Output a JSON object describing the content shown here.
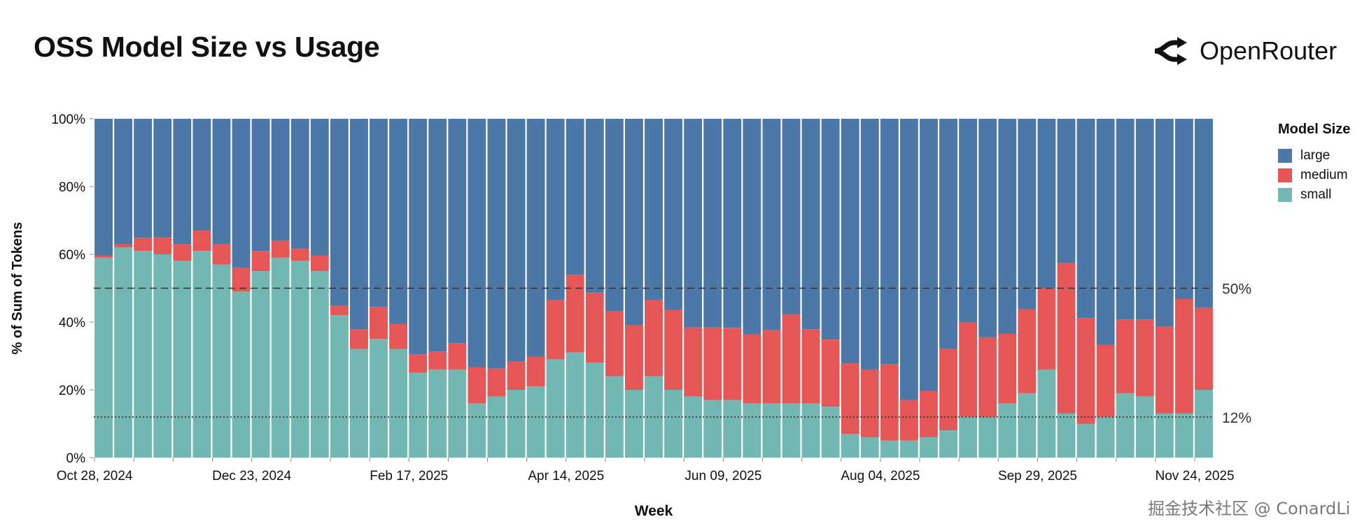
{
  "page": {
    "title": "OSS Model Size vs Usage",
    "brand": {
      "name": "OpenRouter",
      "icon": "openrouter-logo-icon"
    },
    "watermark": "掘金技术社区 @ ConardLi"
  },
  "chart_data": {
    "type": "bar",
    "stacked": true,
    "normalized": true,
    "xlabel": "Week",
    "ylabel": "% of Sum of Tokens",
    "ylim": [
      0,
      100
    ],
    "y_ticks": [
      "0%",
      "20%",
      "40%",
      "60%",
      "80%",
      "100%"
    ],
    "x_tick_labels": [
      {
        "index": 0,
        "label": "Oct 28, 2024"
      },
      {
        "index": 8,
        "label": "Dec 23, 2024"
      },
      {
        "index": 16,
        "label": "Feb 17, 2025"
      },
      {
        "index": 24,
        "label": "Apr 14, 2025"
      },
      {
        "index": 32,
        "label": "Jun 09, 2025"
      },
      {
        "index": 40,
        "label": "Aug 04, 2025"
      },
      {
        "index": 48,
        "label": "Sep 29, 2025"
      },
      {
        "index": 56,
        "label": "Nov 24, 2025"
      }
    ],
    "legend": {
      "title": "Model Size",
      "position": "right"
    },
    "series": [
      {
        "name": "small",
        "color": "#72b7b2",
        "values": [
          59,
          62,
          61,
          60,
          58,
          61,
          57,
          49,
          55,
          59,
          58,
          55,
          42,
          32,
          35,
          32,
          25,
          26,
          26,
          16,
          18,
          20,
          21,
          29,
          31,
          28,
          24,
          20,
          24,
          20,
          18,
          17,
          17,
          16,
          16,
          16,
          16,
          15,
          7,
          6,
          5,
          5,
          6,
          8,
          12,
          12,
          16,
          19,
          26,
          13,
          10,
          12,
          19,
          18,
          13,
          13,
          20
        ]
      },
      {
        "name": "medium",
        "color": "#e45756",
        "values": [
          0.6,
          0.9,
          3.8,
          4.9,
          5,
          6,
          6,
          7,
          6,
          5,
          3.6,
          4.6,
          2.8,
          5.9,
          9.5,
          7.4,
          5.5,
          5.3,
          7.8,
          10.7,
          8.3,
          8.3,
          8.8,
          17.6,
          23,
          20.6,
          19.3,
          19,
          22.5,
          23.6,
          20.4,
          21.4,
          21.3,
          20.4,
          21.6,
          26.2,
          21.9,
          19.8,
          20.8,
          20,
          22.6,
          12,
          13.6,
          24,
          28,
          23.5,
          20.6,
          24.8,
          24,
          44.4,
          31.2,
          21.3,
          21.8,
          22.8,
          25.6,
          33.8,
          24.2
        ]
      },
      {
        "name": "large",
        "color": "#4c78a8",
        "values": "remainder to 100%"
      }
    ],
    "reference_lines": [
      {
        "value": 50,
        "label": "50%",
        "style": "dashed"
      },
      {
        "value": 12,
        "label": "12%",
        "style": "dotted"
      }
    ]
  }
}
